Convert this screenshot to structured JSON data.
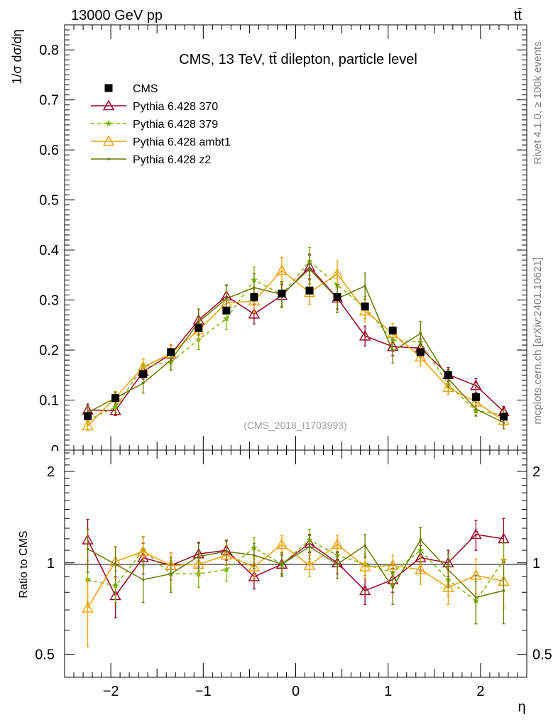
{
  "header": {
    "left": "13000 GeV pp",
    "right": "tt̄"
  },
  "side_labels": {
    "rivet": "Rivet 4.1.0, ≥ 100k events",
    "mcplots": "mcplots.cern.ch [arXiv:2401.10621]"
  },
  "chart_data": [
    {
      "panel": "main",
      "type": "line",
      "title": "CMS, 13 TeV, tt̄ dilepton, particle level",
      "watermark": "(CMS_2018_I1703993)",
      "ylabel": "1/σ dσ/dη",
      "xlabel": "η",
      "xlim": [
        -2.5,
        2.5
      ],
      "ylim": [
        0,
        0.85
      ],
      "yticks": [
        0.1,
        0.2,
        0.3,
        0.4,
        0.5,
        0.6,
        0.7,
        0.8
      ],
      "ytick_labels": [
        "0.1",
        "0.2",
        "0.3",
        "0.4",
        "0.5",
        "0.6",
        "0.7",
        "0.8"
      ],
      "x": [
        -2.25,
        -1.95,
        -1.65,
        -1.35,
        -1.05,
        -0.75,
        -0.45,
        -0.15,
        0.15,
        0.45,
        0.75,
        1.05,
        1.35,
        1.65,
        1.95,
        2.25
      ],
      "series": [
        {
          "name": "CMS",
          "style": "data",
          "color": "#000000",
          "values": [
            0.068,
            0.104,
            0.152,
            0.196,
            0.244,
            0.279,
            0.306,
            0.313,
            0.319,
            0.306,
            0.287,
            0.239,
            0.196,
            0.15,
            0.106,
            0.067
          ]
        },
        {
          "name": "Pythia 6.428 370",
          "style": "triangle",
          "color": "#990022",
          "values": [
            0.08,
            0.079,
            0.157,
            0.192,
            0.26,
            0.308,
            0.272,
            0.309,
            0.366,
            0.304,
            0.228,
            0.207,
            0.204,
            0.151,
            0.129,
            0.077
          ],
          "errors": [
            0.012,
            0.01,
            0.015,
            0.018,
            0.022,
            0.022,
            0.02,
            0.022,
            0.024,
            0.022,
            0.02,
            0.018,
            0.018,
            0.014,
            0.014,
            0.01
          ]
        },
        {
          "name": "Pythia 6.428 379",
          "style": "star-dashed",
          "color": "#7ab800",
          "values": [
            0.06,
            0.086,
            0.167,
            0.176,
            0.221,
            0.263,
            0.34,
            0.311,
            0.377,
            0.33,
            0.285,
            0.22,
            0.216,
            0.131,
            0.079,
            0.07
          ],
          "errors": [
            0.01,
            0.01,
            0.015,
            0.016,
            0.02,
            0.022,
            0.026,
            0.024,
            0.028,
            0.024,
            0.022,
            0.02,
            0.02,
            0.014,
            0.01,
            0.01
          ]
        },
        {
          "name": "Pythia 6.428 ambt1",
          "style": "triangle",
          "color": "#f0a000",
          "values": [
            0.049,
            0.105,
            0.166,
            0.193,
            0.24,
            0.294,
            0.298,
            0.359,
            0.315,
            0.352,
            0.278,
            0.233,
            0.186,
            0.125,
            0.096,
            0.059
          ],
          "errors": [
            0.01,
            0.012,
            0.016,
            0.018,
            0.022,
            0.022,
            0.024,
            0.026,
            0.024,
            0.026,
            0.022,
            0.02,
            0.018,
            0.014,
            0.012,
            0.01
          ]
        },
        {
          "name": "Pythia 6.428 z2",
          "style": "dot",
          "color": "#6b7a00",
          "values": [
            0.075,
            0.104,
            0.134,
            0.18,
            0.256,
            0.303,
            0.325,
            0.311,
            0.362,
            0.303,
            0.328,
            0.198,
            0.233,
            0.143,
            0.082,
            0.055
          ],
          "errors": [
            0.012,
            0.012,
            0.02,
            0.02,
            0.026,
            0.026,
            0.028,
            0.026,
            0.03,
            0.028,
            0.026,
            0.024,
            0.024,
            0.018,
            0.014,
            0.012
          ]
        }
      ]
    },
    {
      "panel": "ratio",
      "type": "line",
      "ylabel": "Ratio to CMS",
      "xlabel": "η",
      "xlim": [
        -2.5,
        2.5
      ],
      "ylim": [
        0.42,
        2.35
      ],
      "ylog": true,
      "yticks": [
        0.5,
        1,
        2
      ],
      "ytick_labels": [
        "0.5",
        "1",
        "2"
      ],
      "xticks": [
        -2,
        -1,
        0,
        1,
        2
      ],
      "xtick_labels": [
        "−2",
        "−1",
        "0",
        "1",
        "2"
      ],
      "x": [
        -2.25,
        -1.95,
        -1.65,
        -1.35,
        -1.05,
        -0.75,
        -0.45,
        -0.15,
        0.15,
        0.45,
        0.75,
        1.05,
        1.35,
        1.65,
        1.95,
        2.25
      ],
      "series": [
        {
          "name": "Pythia 6.428 370",
          "style": "triangle",
          "color": "#990022",
          "values": [
            1.19,
            0.78,
            1.04,
            0.98,
            1.07,
            1.1,
            0.9,
            0.99,
            1.16,
            1.0,
            0.81,
            0.88,
            1.04,
            1.0,
            1.24,
            1.2
          ],
          "errors": [
            0.2,
            0.12,
            0.12,
            0.1,
            0.1,
            0.08,
            0.08,
            0.07,
            0.08,
            0.08,
            0.08,
            0.08,
            0.1,
            0.1,
            0.14,
            0.2
          ]
        },
        {
          "name": "Pythia 6.428 379",
          "style": "star-dashed",
          "color": "#7ab800",
          "values": [
            0.88,
            0.84,
            1.1,
            0.92,
            0.92,
            0.95,
            1.12,
            0.99,
            1.19,
            1.06,
            0.99,
            0.93,
            1.1,
            0.88,
            0.75,
            1.02
          ],
          "errors": [
            0.14,
            0.1,
            0.12,
            0.1,
            0.09,
            0.08,
            0.09,
            0.08,
            0.1,
            0.09,
            0.08,
            0.08,
            0.1,
            0.1,
            0.12,
            0.14
          ]
        },
        {
          "name": "Pythia 6.428 ambt1",
          "style": "triangle",
          "color": "#f0a000",
          "values": [
            0.71,
            1.01,
            1.09,
            0.98,
            0.99,
            1.06,
            0.97,
            1.15,
            0.98,
            1.15,
            0.97,
            0.98,
            0.95,
            0.83,
            0.91,
            0.87
          ],
          "errors": [
            0.18,
            0.12,
            0.12,
            0.1,
            0.09,
            0.08,
            0.08,
            0.08,
            0.08,
            0.08,
            0.08,
            0.08,
            0.1,
            0.1,
            0.12,
            0.16
          ]
        },
        {
          "name": "Pythia 6.428 z2",
          "style": "dot",
          "color": "#6b7a00",
          "values": [
            1.11,
            0.99,
            0.88,
            0.92,
            1.05,
            1.09,
            1.06,
            0.99,
            1.13,
            0.99,
            1.14,
            0.83,
            1.19,
            0.95,
            0.77,
            0.81
          ],
          "errors": [
            0.18,
            0.14,
            0.14,
            0.12,
            0.11,
            0.1,
            0.1,
            0.09,
            0.1,
            0.1,
            0.1,
            0.1,
            0.12,
            0.12,
            0.14,
            0.18
          ]
        }
      ]
    }
  ]
}
